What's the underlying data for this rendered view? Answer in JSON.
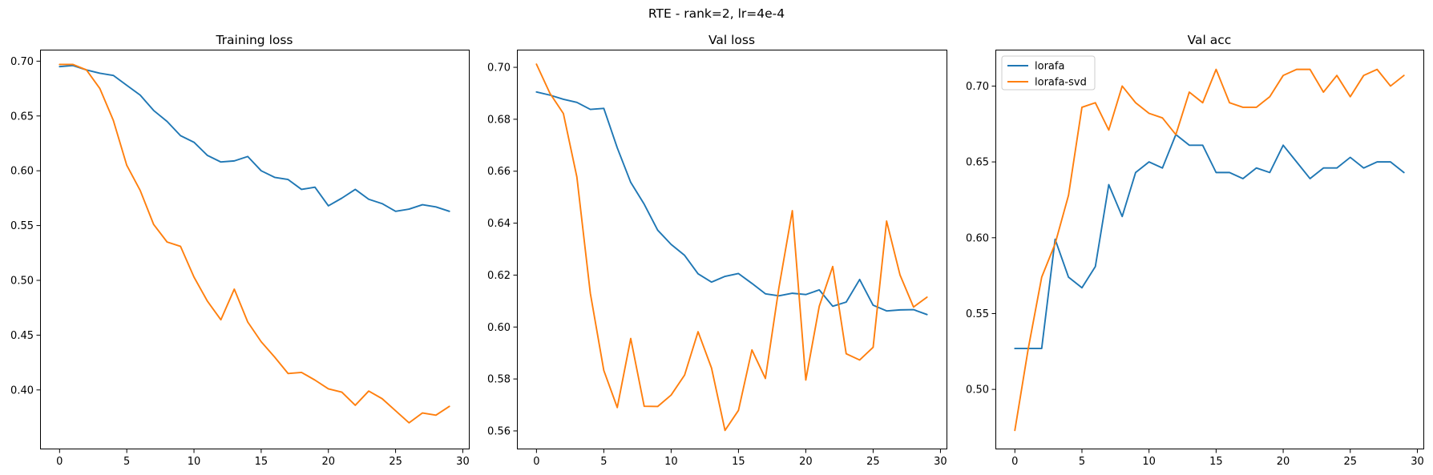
{
  "figure": {
    "suptitle": "RTE - rank=2, lr=4e-4"
  },
  "colors": {
    "lorafa": "#1f77b4",
    "lorafa-svd": "#ff7f0e"
  },
  "chart_data": [
    {
      "type": "line",
      "title": "Training loss",
      "xlabel": "",
      "ylabel": "",
      "xlim": [
        -1.45,
        30.45
      ],
      "ylim": [
        0.3465,
        0.7105
      ],
      "xticks": [
        0,
        5,
        10,
        15,
        20,
        25,
        30
      ],
      "yticks": [
        0.4,
        0.45,
        0.5,
        0.55,
        0.6,
        0.65,
        0.7
      ],
      "ytick_labels": [
        "0.40",
        "0.45",
        "0.50",
        "0.55",
        "0.60",
        "0.65",
        "0.70"
      ],
      "grid": false,
      "legend": null,
      "x": [
        0,
        1,
        2,
        3,
        4,
        5,
        6,
        7,
        8,
        9,
        10,
        11,
        12,
        13,
        14,
        15,
        16,
        17,
        18,
        19,
        20,
        21,
        22,
        23,
        24,
        25,
        26,
        27,
        28,
        29
      ],
      "series": [
        {
          "name": "lorafa",
          "color": "#1f77b4",
          "values": [
            0.695,
            0.696,
            0.692,
            0.689,
            0.687,
            0.678,
            0.669,
            0.655,
            0.645,
            0.632,
            0.626,
            0.614,
            0.608,
            0.609,
            0.613,
            0.6,
            0.594,
            0.592,
            0.583,
            0.585,
            0.568,
            0.575,
            0.583,
            0.574,
            0.57,
            0.563,
            0.565,
            0.569,
            0.567,
            0.563
          ]
        },
        {
          "name": "lorafa-svd",
          "color": "#ff7f0e",
          "values": [
            0.697,
            0.697,
            0.692,
            0.675,
            0.646,
            0.605,
            0.582,
            0.551,
            0.535,
            0.531,
            0.503,
            0.481,
            0.464,
            0.492,
            0.462,
            0.444,
            0.43,
            0.415,
            0.416,
            0.409,
            0.401,
            0.398,
            0.386,
            0.399,
            0.392,
            0.381,
            0.37,
            0.379,
            0.377,
            0.385
          ]
        }
      ]
    },
    {
      "type": "line",
      "title": "Val loss",
      "xlabel": "",
      "ylabel": "",
      "xlim": [
        -1.45,
        30.45
      ],
      "ylim": [
        0.5532,
        0.7068
      ],
      "xticks": [
        0,
        5,
        10,
        15,
        20,
        25,
        30
      ],
      "yticks": [
        0.56,
        0.58,
        0.6,
        0.62,
        0.64,
        0.66,
        0.68,
        0.7
      ],
      "ytick_labels": [
        "0.56",
        "0.58",
        "0.60",
        "0.62",
        "0.64",
        "0.66",
        "0.68",
        "0.70"
      ],
      "grid": false,
      "legend": null,
      "x": [
        0,
        1,
        2,
        3,
        4,
        5,
        6,
        7,
        8,
        9,
        10,
        11,
        12,
        13,
        14,
        15,
        16,
        17,
        18,
        19,
        20,
        21,
        22,
        23,
        24,
        25,
        26,
        27,
        28,
        29
      ],
      "series": [
        {
          "name": "lorafa",
          "color": "#1f77b4",
          "values": [
            0.6905,
            0.6893,
            0.6877,
            0.6865,
            0.6838,
            0.6842,
            0.669,
            0.6557,
            0.6473,
            0.6373,
            0.6318,
            0.6276,
            0.6205,
            0.6173,
            0.6195,
            0.6206,
            0.6168,
            0.6128,
            0.612,
            0.613,
            0.6125,
            0.6143,
            0.608,
            0.6096,
            0.6183,
            0.6084,
            0.6062,
            0.6066,
            0.6067,
            0.6048
          ]
        },
        {
          "name": "lorafa-svd",
          "color": "#ff7f0e",
          "values": [
            0.7012,
            0.69,
            0.6822,
            0.6578,
            0.613,
            0.5833,
            0.569,
            0.5956,
            0.5695,
            0.5694,
            0.5738,
            0.5815,
            0.5982,
            0.5842,
            0.5602,
            0.5679,
            0.5912,
            0.5802,
            0.615,
            0.6448,
            0.5796,
            0.608,
            0.6233,
            0.5897,
            0.5873,
            0.5922,
            0.6408,
            0.62,
            0.6077,
            0.6115
          ]
        }
      ]
    },
    {
      "type": "line",
      "title": "Val acc",
      "xlabel": "",
      "ylabel": "",
      "xlim": [
        -1.45,
        30.45
      ],
      "ylim": [
        0.461,
        0.724
      ],
      "xticks": [
        0,
        5,
        10,
        15,
        20,
        25,
        30
      ],
      "yticks": [
        0.5,
        0.55,
        0.6,
        0.65,
        0.7
      ],
      "ytick_labels": [
        "0.50",
        "0.55",
        "0.60",
        "0.65",
        "0.70"
      ],
      "grid": false,
      "legend": "top-left",
      "x": [
        0,
        1,
        2,
        3,
        4,
        5,
        6,
        7,
        8,
        9,
        10,
        11,
        12,
        13,
        14,
        15,
        16,
        17,
        18,
        19,
        20,
        21,
        22,
        23,
        24,
        25,
        26,
        27,
        28,
        29
      ],
      "series": [
        {
          "name": "lorafa",
          "color": "#1f77b4",
          "values": [
            0.527,
            0.527,
            0.527,
            0.599,
            0.574,
            0.567,
            0.581,
            0.635,
            0.614,
            0.643,
            0.65,
            0.646,
            0.668,
            0.661,
            0.661,
            0.643,
            0.643,
            0.639,
            0.646,
            0.643,
            0.661,
            0.65,
            0.639,
            0.646,
            0.646,
            0.653,
            0.646,
            0.65,
            0.65,
            0.643
          ]
        },
        {
          "name": "lorafa-svd",
          "color": "#ff7f0e",
          "values": [
            0.473,
            0.527,
            0.574,
            0.596,
            0.628,
            0.686,
            0.689,
            0.671,
            0.7,
            0.689,
            0.682,
            0.679,
            0.668,
            0.696,
            0.689,
            0.711,
            0.689,
            0.686,
            0.686,
            0.693,
            0.707,
            0.711,
            0.711,
            0.696,
            0.707,
            0.693,
            0.707,
            0.711,
            0.7,
            0.707
          ]
        }
      ]
    }
  ]
}
